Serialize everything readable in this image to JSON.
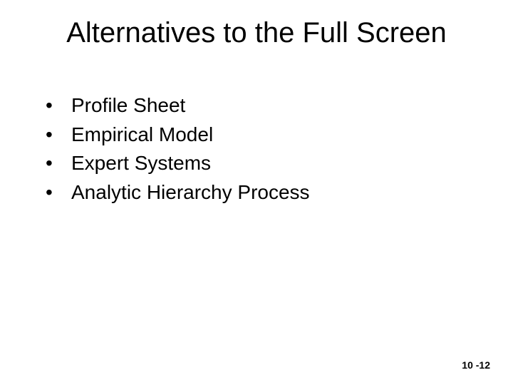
{
  "slide": {
    "title": "Alternatives to the Full Screen",
    "bullets": [
      "Profile Sheet",
      "Empirical Model",
      "Expert Systems",
      "Analytic Hierarchy Process"
    ],
    "footer": "10 -12"
  },
  "style": {
    "background_color": "#ffffff",
    "text_color": "#000000",
    "title_fontsize": 40,
    "body_fontsize": 28,
    "footer_fontsize": 14,
    "font_family": "Arial"
  }
}
